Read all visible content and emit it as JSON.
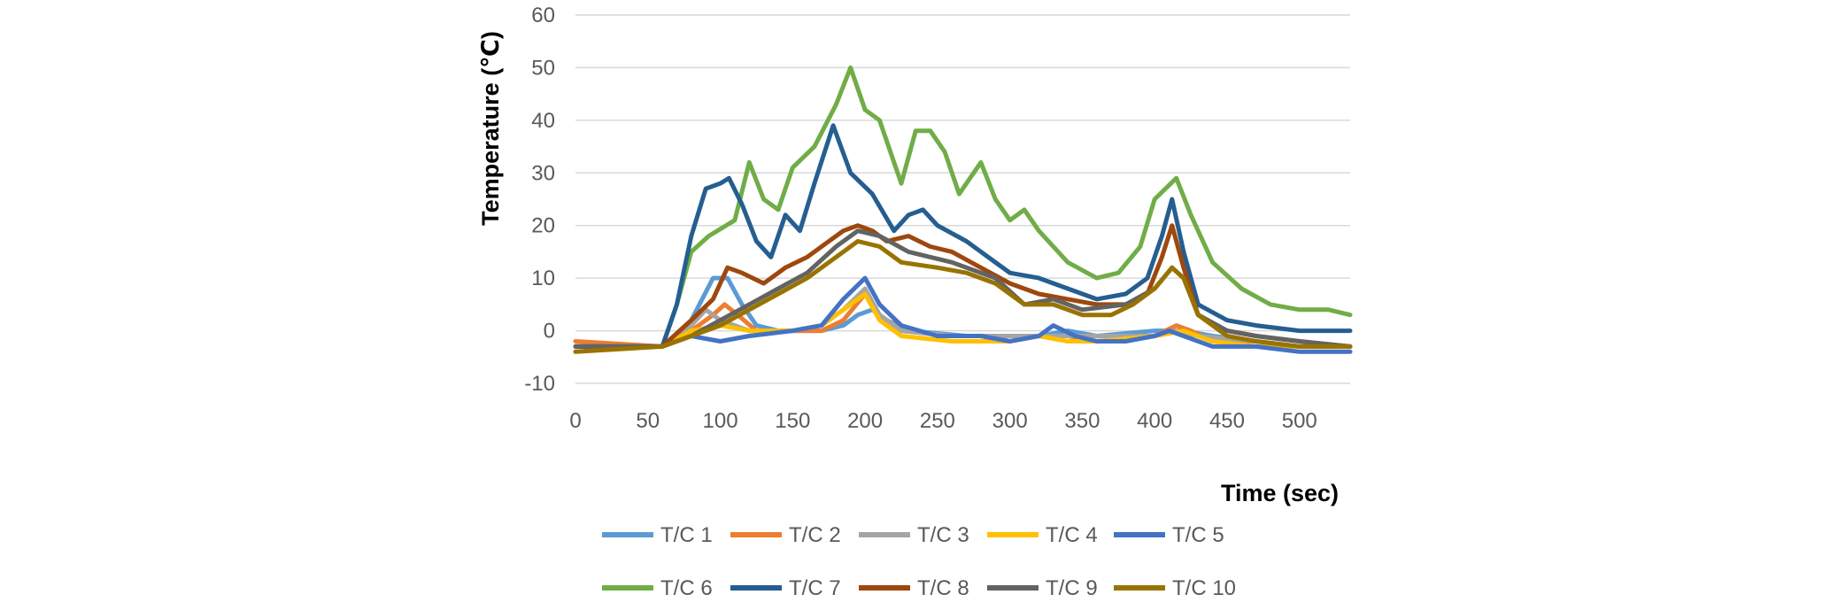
{
  "chart_data": {
    "type": "line",
    "title": "",
    "xlabel": "Time (sec)",
    "ylabel": "Temperature (℃)",
    "xlim": [
      0,
      535
    ],
    "ylim": [
      -10,
      60
    ],
    "xticks": [
      "0",
      "50",
      "100",
      "150",
      "200",
      "250",
      "300",
      "350",
      "400",
      "450",
      "500"
    ],
    "yticks": [
      "-10",
      "0",
      "10",
      "20",
      "30",
      "40",
      "50",
      "60"
    ],
    "grid": "horizontal",
    "legend": "bottom",
    "series": [
      {
        "name": "T/C 1",
        "color": "#5B9BD5",
        "points": [
          [
            0,
            -3
          ],
          [
            60,
            -3
          ],
          [
            80,
            2
          ],
          [
            95,
            10
          ],
          [
            105,
            10
          ],
          [
            115,
            5
          ],
          [
            125,
            1
          ],
          [
            140,
            0
          ],
          [
            170,
            0
          ],
          [
            185,
            1
          ],
          [
            195,
            3
          ],
          [
            205,
            4
          ],
          [
            215,
            2
          ],
          [
            230,
            0
          ],
          [
            270,
            -1
          ],
          [
            300,
            -1
          ],
          [
            320,
            -1
          ],
          [
            340,
            0
          ],
          [
            360,
            -1
          ],
          [
            400,
            0
          ],
          [
            420,
            0
          ],
          [
            440,
            -1
          ],
          [
            470,
            -2
          ],
          [
            500,
            -3
          ],
          [
            535,
            -3
          ]
        ]
      },
      {
        "name": "T/C 2",
        "color": "#ED7D31",
        "points": [
          [
            0,
            -2
          ],
          [
            60,
            -3
          ],
          [
            80,
            0
          ],
          [
            95,
            3
          ],
          [
            103,
            5
          ],
          [
            112,
            3
          ],
          [
            125,
            0
          ],
          [
            150,
            0
          ],
          [
            170,
            0
          ],
          [
            185,
            2
          ],
          [
            200,
            7
          ],
          [
            210,
            3
          ],
          [
            225,
            0
          ],
          [
            260,
            -1
          ],
          [
            280,
            -1
          ],
          [
            300,
            -2
          ],
          [
            320,
            -1
          ],
          [
            340,
            -1
          ],
          [
            360,
            -2
          ],
          [
            400,
            -1
          ],
          [
            415,
            1
          ],
          [
            425,
            0
          ],
          [
            440,
            -2
          ],
          [
            470,
            -2
          ],
          [
            500,
            -3
          ],
          [
            535,
            -3
          ]
        ]
      },
      {
        "name": "T/C 3",
        "color": "#A5A5A5",
        "points": [
          [
            0,
            -3
          ],
          [
            60,
            -3
          ],
          [
            80,
            1
          ],
          [
            90,
            4
          ],
          [
            100,
            2
          ],
          [
            120,
            0
          ],
          [
            150,
            0
          ],
          [
            170,
            1
          ],
          [
            185,
            4
          ],
          [
            200,
            8
          ],
          [
            210,
            3
          ],
          [
            225,
            0
          ],
          [
            260,
            -1
          ],
          [
            300,
            -1
          ],
          [
            330,
            -1
          ],
          [
            350,
            -1
          ],
          [
            400,
            -1
          ],
          [
            415,
            0
          ],
          [
            430,
            -1
          ],
          [
            470,
            -2
          ],
          [
            500,
            -3
          ],
          [
            535,
            -3
          ]
        ]
      },
      {
        "name": "T/C 4",
        "color": "#FFC000",
        "points": [
          [
            0,
            -3
          ],
          [
            60,
            -3
          ],
          [
            80,
            0
          ],
          [
            100,
            1
          ],
          [
            120,
            0
          ],
          [
            150,
            0
          ],
          [
            170,
            1
          ],
          [
            185,
            4
          ],
          [
            200,
            7
          ],
          [
            210,
            2
          ],
          [
            225,
            -1
          ],
          [
            260,
            -2
          ],
          [
            300,
            -2
          ],
          [
            320,
            -1
          ],
          [
            340,
            -2
          ],
          [
            360,
            -2
          ],
          [
            400,
            -1
          ],
          [
            420,
            0
          ],
          [
            440,
            -2
          ],
          [
            470,
            -3
          ],
          [
            500,
            -3
          ],
          [
            535,
            -3
          ]
        ]
      },
      {
        "name": "T/C 5",
        "color": "#4472C4",
        "points": [
          [
            0,
            -3
          ],
          [
            60,
            -3
          ],
          [
            80,
            -1
          ],
          [
            100,
            -2
          ],
          [
            120,
            -1
          ],
          [
            150,
            0
          ],
          [
            170,
            1
          ],
          [
            185,
            6
          ],
          [
            200,
            10
          ],
          [
            210,
            5
          ],
          [
            225,
            1
          ],
          [
            250,
            -1
          ],
          [
            280,
            -1
          ],
          [
            300,
            -2
          ],
          [
            320,
            -1
          ],
          [
            330,
            1
          ],
          [
            345,
            -1
          ],
          [
            360,
            -2
          ],
          [
            380,
            -2
          ],
          [
            400,
            -1
          ],
          [
            410,
            0
          ],
          [
            420,
            -1
          ],
          [
            440,
            -3
          ],
          [
            470,
            -3
          ],
          [
            500,
            -4
          ],
          [
            535,
            -4
          ]
        ]
      },
      {
        "name": "T/C 6",
        "color": "#70AD47",
        "points": [
          [
            0,
            -3
          ],
          [
            60,
            -3
          ],
          [
            70,
            5
          ],
          [
            80,
            15
          ],
          [
            92,
            18
          ],
          [
            110,
            21
          ],
          [
            120,
            32
          ],
          [
            130,
            25
          ],
          [
            140,
            23
          ],
          [
            150,
            31
          ],
          [
            165,
            35
          ],
          [
            180,
            43
          ],
          [
            190,
            50
          ],
          [
            200,
            42
          ],
          [
            210,
            40
          ],
          [
            225,
            28
          ],
          [
            235,
            38
          ],
          [
            245,
            38
          ],
          [
            255,
            34
          ],
          [
            265,
            26
          ],
          [
            280,
            32
          ],
          [
            290,
            25
          ],
          [
            300,
            21
          ],
          [
            310,
            23
          ],
          [
            320,
            19
          ],
          [
            340,
            13
          ],
          [
            360,
            10
          ],
          [
            375,
            11
          ],
          [
            390,
            16
          ],
          [
            400,
            25
          ],
          [
            415,
            29
          ],
          [
            425,
            22
          ],
          [
            440,
            13
          ],
          [
            460,
            8
          ],
          [
            480,
            5
          ],
          [
            500,
            4
          ],
          [
            520,
            4
          ],
          [
            535,
            3
          ]
        ]
      },
      {
        "name": "T/C 7",
        "color": "#255E91",
        "points": [
          [
            0,
            -3
          ],
          [
            60,
            -3
          ],
          [
            70,
            5
          ],
          [
            80,
            18
          ],
          [
            90,
            27
          ],
          [
            100,
            28
          ],
          [
            106,
            29
          ],
          [
            115,
            24
          ],
          [
            125,
            17
          ],
          [
            135,
            14
          ],
          [
            145,
            22
          ],
          [
            155,
            19
          ],
          [
            165,
            28
          ],
          [
            178,
            39
          ],
          [
            190,
            30
          ],
          [
            205,
            26
          ],
          [
            220,
            19
          ],
          [
            230,
            22
          ],
          [
            240,
            23
          ],
          [
            250,
            20
          ],
          [
            270,
            17
          ],
          [
            290,
            13
          ],
          [
            300,
            11
          ],
          [
            320,
            10
          ],
          [
            340,
            8
          ],
          [
            360,
            6
          ],
          [
            380,
            7
          ],
          [
            395,
            10
          ],
          [
            405,
            18
          ],
          [
            412,
            25
          ],
          [
            420,
            15
          ],
          [
            430,
            5
          ],
          [
            450,
            2
          ],
          [
            470,
            1
          ],
          [
            500,
            0
          ],
          [
            535,
            0
          ]
        ]
      },
      {
        "name": "T/C 8",
        "color": "#9E480E",
        "points": [
          [
            0,
            -3
          ],
          [
            60,
            -3
          ],
          [
            80,
            2
          ],
          [
            95,
            6
          ],
          [
            105,
            12
          ],
          [
            115,
            11
          ],
          [
            130,
            9
          ],
          [
            145,
            12
          ],
          [
            160,
            14
          ],
          [
            175,
            17
          ],
          [
            185,
            19
          ],
          [
            195,
            20
          ],
          [
            205,
            19
          ],
          [
            215,
            17
          ],
          [
            230,
            18
          ],
          [
            245,
            16
          ],
          [
            260,
            15
          ],
          [
            280,
            12
          ],
          [
            300,
            9
          ],
          [
            320,
            7
          ],
          [
            340,
            6
          ],
          [
            360,
            5
          ],
          [
            380,
            5
          ],
          [
            395,
            7
          ],
          [
            405,
            14
          ],
          [
            412,
            20
          ],
          [
            420,
            12
          ],
          [
            430,
            3
          ],
          [
            450,
            0
          ],
          [
            470,
            -1
          ],
          [
            500,
            -2
          ],
          [
            535,
            -3
          ]
        ]
      },
      {
        "name": "T/C 9",
        "color": "#636363",
        "points": [
          [
            0,
            -3
          ],
          [
            60,
            -3
          ],
          [
            80,
            -1
          ],
          [
            100,
            2
          ],
          [
            120,
            5
          ],
          [
            140,
            8
          ],
          [
            160,
            11
          ],
          [
            180,
            16
          ],
          [
            195,
            19
          ],
          [
            210,
            18
          ],
          [
            230,
            15
          ],
          [
            260,
            13
          ],
          [
            290,
            10
          ],
          [
            310,
            5
          ],
          [
            330,
            6
          ],
          [
            350,
            4
          ],
          [
            380,
            5
          ],
          [
            400,
            8
          ],
          [
            412,
            12
          ],
          [
            420,
            10
          ],
          [
            430,
            3
          ],
          [
            450,
            0
          ],
          [
            470,
            -1
          ],
          [
            500,
            -2
          ],
          [
            535,
            -3
          ]
        ]
      },
      {
        "name": "T/C 10",
        "color": "#997300",
        "points": [
          [
            0,
            -4
          ],
          [
            60,
            -3
          ],
          [
            80,
            -1
          ],
          [
            100,
            1
          ],
          [
            120,
            4
          ],
          [
            140,
            7
          ],
          [
            160,
            10
          ],
          [
            180,
            14
          ],
          [
            195,
            17
          ],
          [
            210,
            16
          ],
          [
            225,
            13
          ],
          [
            250,
            12
          ],
          [
            270,
            11
          ],
          [
            290,
            9
          ],
          [
            310,
            5
          ],
          [
            330,
            5
          ],
          [
            350,
            3
          ],
          [
            370,
            3
          ],
          [
            385,
            5
          ],
          [
            400,
            8
          ],
          [
            412,
            12
          ],
          [
            420,
            10
          ],
          [
            430,
            3
          ],
          [
            450,
            -1
          ],
          [
            470,
            -2
          ],
          [
            500,
            -3
          ],
          [
            535,
            -3
          ]
        ]
      }
    ]
  }
}
